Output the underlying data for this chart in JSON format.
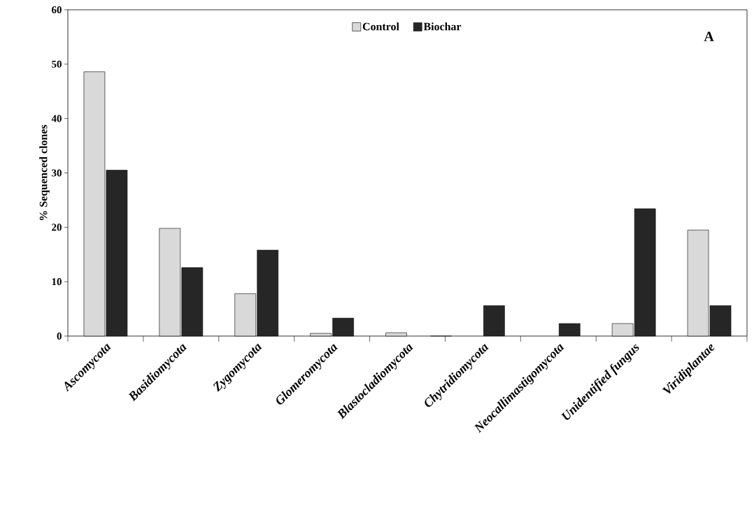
{
  "chart_data": {
    "type": "bar",
    "ylabel": "% Sequenced clones",
    "categories": [
      "Ascomycota",
      "Basidiomycota",
      "Zygomycota",
      "Glomeromycota",
      "Blastocladiomycota",
      "Chytridiomycota",
      "Neocallimastigomycota",
      "Unidentified fungus",
      "Viridiplantae"
    ],
    "series": [
      {
        "name": "Control",
        "color": "#d9d9d9",
        "values": [
          48.6,
          19.8,
          7.8,
          0.5,
          0.6,
          0,
          0,
          2.3,
          19.5
        ]
      },
      {
        "name": "Biochar",
        "color": "#262626",
        "values": [
          30.5,
          12.6,
          15.8,
          3.3,
          0,
          5.6,
          2.3,
          23.4,
          5.6
        ]
      }
    ],
    "ylim": [
      0,
      60
    ],
    "yticks": [
      0,
      10,
      20,
      30,
      40,
      50,
      60
    ],
    "legend": "top",
    "grid": false,
    "annotations": [
      "A"
    ]
  }
}
